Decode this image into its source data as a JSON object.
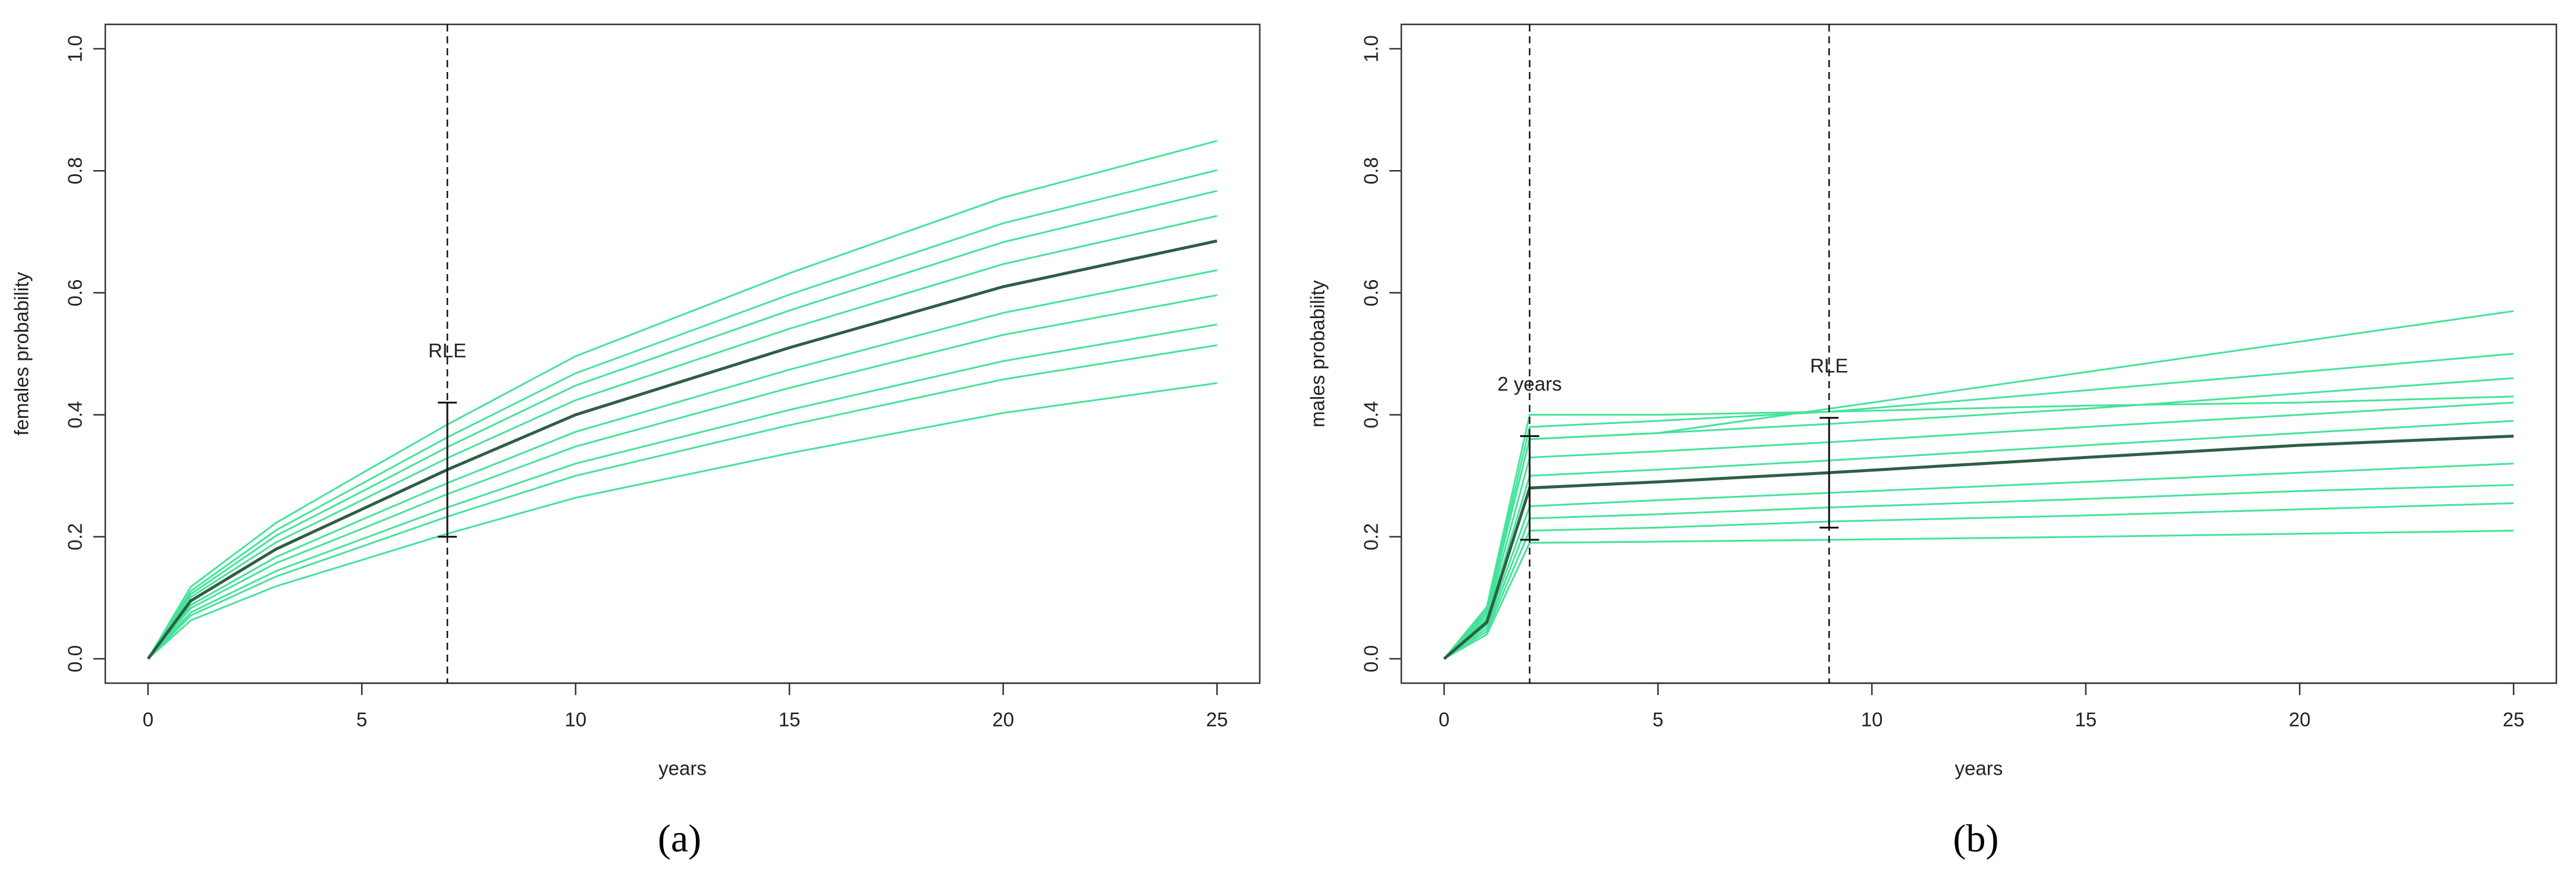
{
  "chart_data": [
    {
      "type": "line",
      "caption": "(a)",
      "x_label": "years",
      "y_label": "females probability",
      "xlim": [
        -1,
        26
      ],
      "ylim": [
        -0.04,
        1.04
      ],
      "xticks": [
        0,
        5,
        10,
        15,
        20,
        25
      ],
      "yticks": [
        {
          "value": 0,
          "label": "0.0"
        },
        0.2,
        0.4,
        0.6,
        0.8,
        {
          "value": 1,
          "label": "1.0"
        }
      ],
      "x": [
        0,
        1,
        3,
        5,
        7,
        10,
        15,
        20,
        25
      ],
      "series": [
        {
          "color": "#45e39a",
          "values": [
            0,
            0.063,
            0.119,
            0.162,
            0.205,
            0.264,
            0.337,
            0.403,
            0.452
          ]
        },
        {
          "color": "#45e39a",
          "values": [
            0,
            0.071,
            0.135,
            0.184,
            0.233,
            0.3,
            0.383,
            0.458,
            0.514
          ]
        },
        {
          "color": "#45e39a",
          "values": [
            0,
            0.076,
            0.144,
            0.196,
            0.248,
            0.32,
            0.408,
            0.488,
            0.548
          ]
        },
        {
          "color": "#45e39a",
          "values": [
            0,
            0.083,
            0.157,
            0.213,
            0.27,
            0.348,
            0.444,
            0.531,
            0.596
          ]
        },
        {
          "color": "#45e39a",
          "values": [
            0,
            0.088,
            0.167,
            0.228,
            0.288,
            0.372,
            0.474,
            0.567,
            0.637
          ]
        },
        {
          "color": "#45e39a",
          "values": [
            0,
            0.101,
            0.191,
            0.26,
            0.329,
            0.424,
            0.541,
            0.647,
            0.726
          ]
        },
        {
          "color": "#45e39a",
          "values": [
            0,
            0.106,
            0.202,
            0.274,
            0.347,
            0.448,
            0.571,
            0.683,
            0.767
          ]
        },
        {
          "color": "#45e39a",
          "values": [
            0,
            0.111,
            0.211,
            0.287,
            0.363,
            0.468,
            0.597,
            0.714,
            0.801
          ]
        },
        {
          "color": "#45e39a",
          "values": [
            0,
            0.118,
            0.223,
            0.304,
            0.384,
            0.496,
            0.632,
            0.756,
            0.849
          ]
        },
        {
          "color": "#2f5e45",
          "values": [
            0,
            0.095,
            0.18,
            0.245,
            0.31,
            0.4,
            0.51,
            0.61,
            0.685
          ]
        }
      ],
      "vlines": [
        7
      ],
      "intervals": [
        {
          "x": 7,
          "lower": 0.2,
          "upper": 0.42,
          "label": "RLE"
        }
      ]
    },
    {
      "type": "line",
      "caption": "(b)",
      "x_label": "years",
      "y_label": "males probability",
      "xlim": [
        -1,
        26
      ],
      "ylim": [
        -0.04,
        1.04
      ],
      "xticks": [
        0,
        5,
        10,
        15,
        20,
        25
      ],
      "yticks": [
        {
          "value": 0,
          "label": "0.0"
        },
        0.2,
        0.4,
        0.6,
        0.8,
        {
          "value": 1,
          "label": "1.0"
        }
      ],
      "x": [
        0,
        1,
        2,
        5,
        9,
        15,
        20,
        25
      ],
      "series": [
        {
          "color": "#45e39a",
          "values": [
            0,
            0.04,
            0.19,
            0.192,
            0.195,
            0.2,
            0.205,
            0.21
          ]
        },
        {
          "color": "#45e39a",
          "values": [
            0,
            0.045,
            0.21,
            0.215,
            0.225,
            0.235,
            0.245,
            0.255
          ]
        },
        {
          "color": "#45e39a",
          "values": [
            0,
            0.05,
            0.23,
            0.237,
            0.248,
            0.262,
            0.275,
            0.285
          ]
        },
        {
          "color": "#45e39a",
          "values": [
            0,
            0.055,
            0.25,
            0.26,
            0.272,
            0.29,
            0.305,
            0.32
          ]
        },
        {
          "color": "#45e39a",
          "values": [
            0,
            0.065,
            0.3,
            0.31,
            0.325,
            0.35,
            0.37,
            0.39
          ]
        },
        {
          "color": "#45e39a",
          "values": [
            0,
            0.07,
            0.33,
            0.34,
            0.355,
            0.38,
            0.4,
            0.42
          ]
        },
        {
          "color": "#45e39a",
          "values": [
            0,
            0.075,
            0.36,
            0.37,
            0.385,
            0.41,
            0.435,
            0.46
          ]
        },
        {
          "color": "#45e39a",
          "values": [
            0,
            0.08,
            0.38,
            0.39,
            0.405,
            0.44,
            0.47,
            0.5
          ]
        },
        {
          "color": "#45e39a",
          "values": [
            0,
            0.08,
            0.36,
            0.37,
            0.41,
            0.47,
            0.52,
            0.57
          ]
        },
        {
          "color": "#45e39a",
          "values": [
            0,
            0.085,
            0.4,
            0.4,
            0.405,
            0.415,
            0.42,
            0.43
          ]
        },
        {
          "color": "#2f5e45",
          "values": [
            0,
            0.06,
            0.28,
            0.29,
            0.305,
            0.33,
            0.35,
            0.365
          ]
        }
      ],
      "vlines": [
        2,
        9
      ],
      "intervals": [
        {
          "x": 2,
          "lower": 0.195,
          "upper": 0.365,
          "label": "2 years"
        },
        {
          "x": 9,
          "lower": 0.215,
          "upper": 0.395,
          "label": "RLE"
        }
      ]
    }
  ]
}
